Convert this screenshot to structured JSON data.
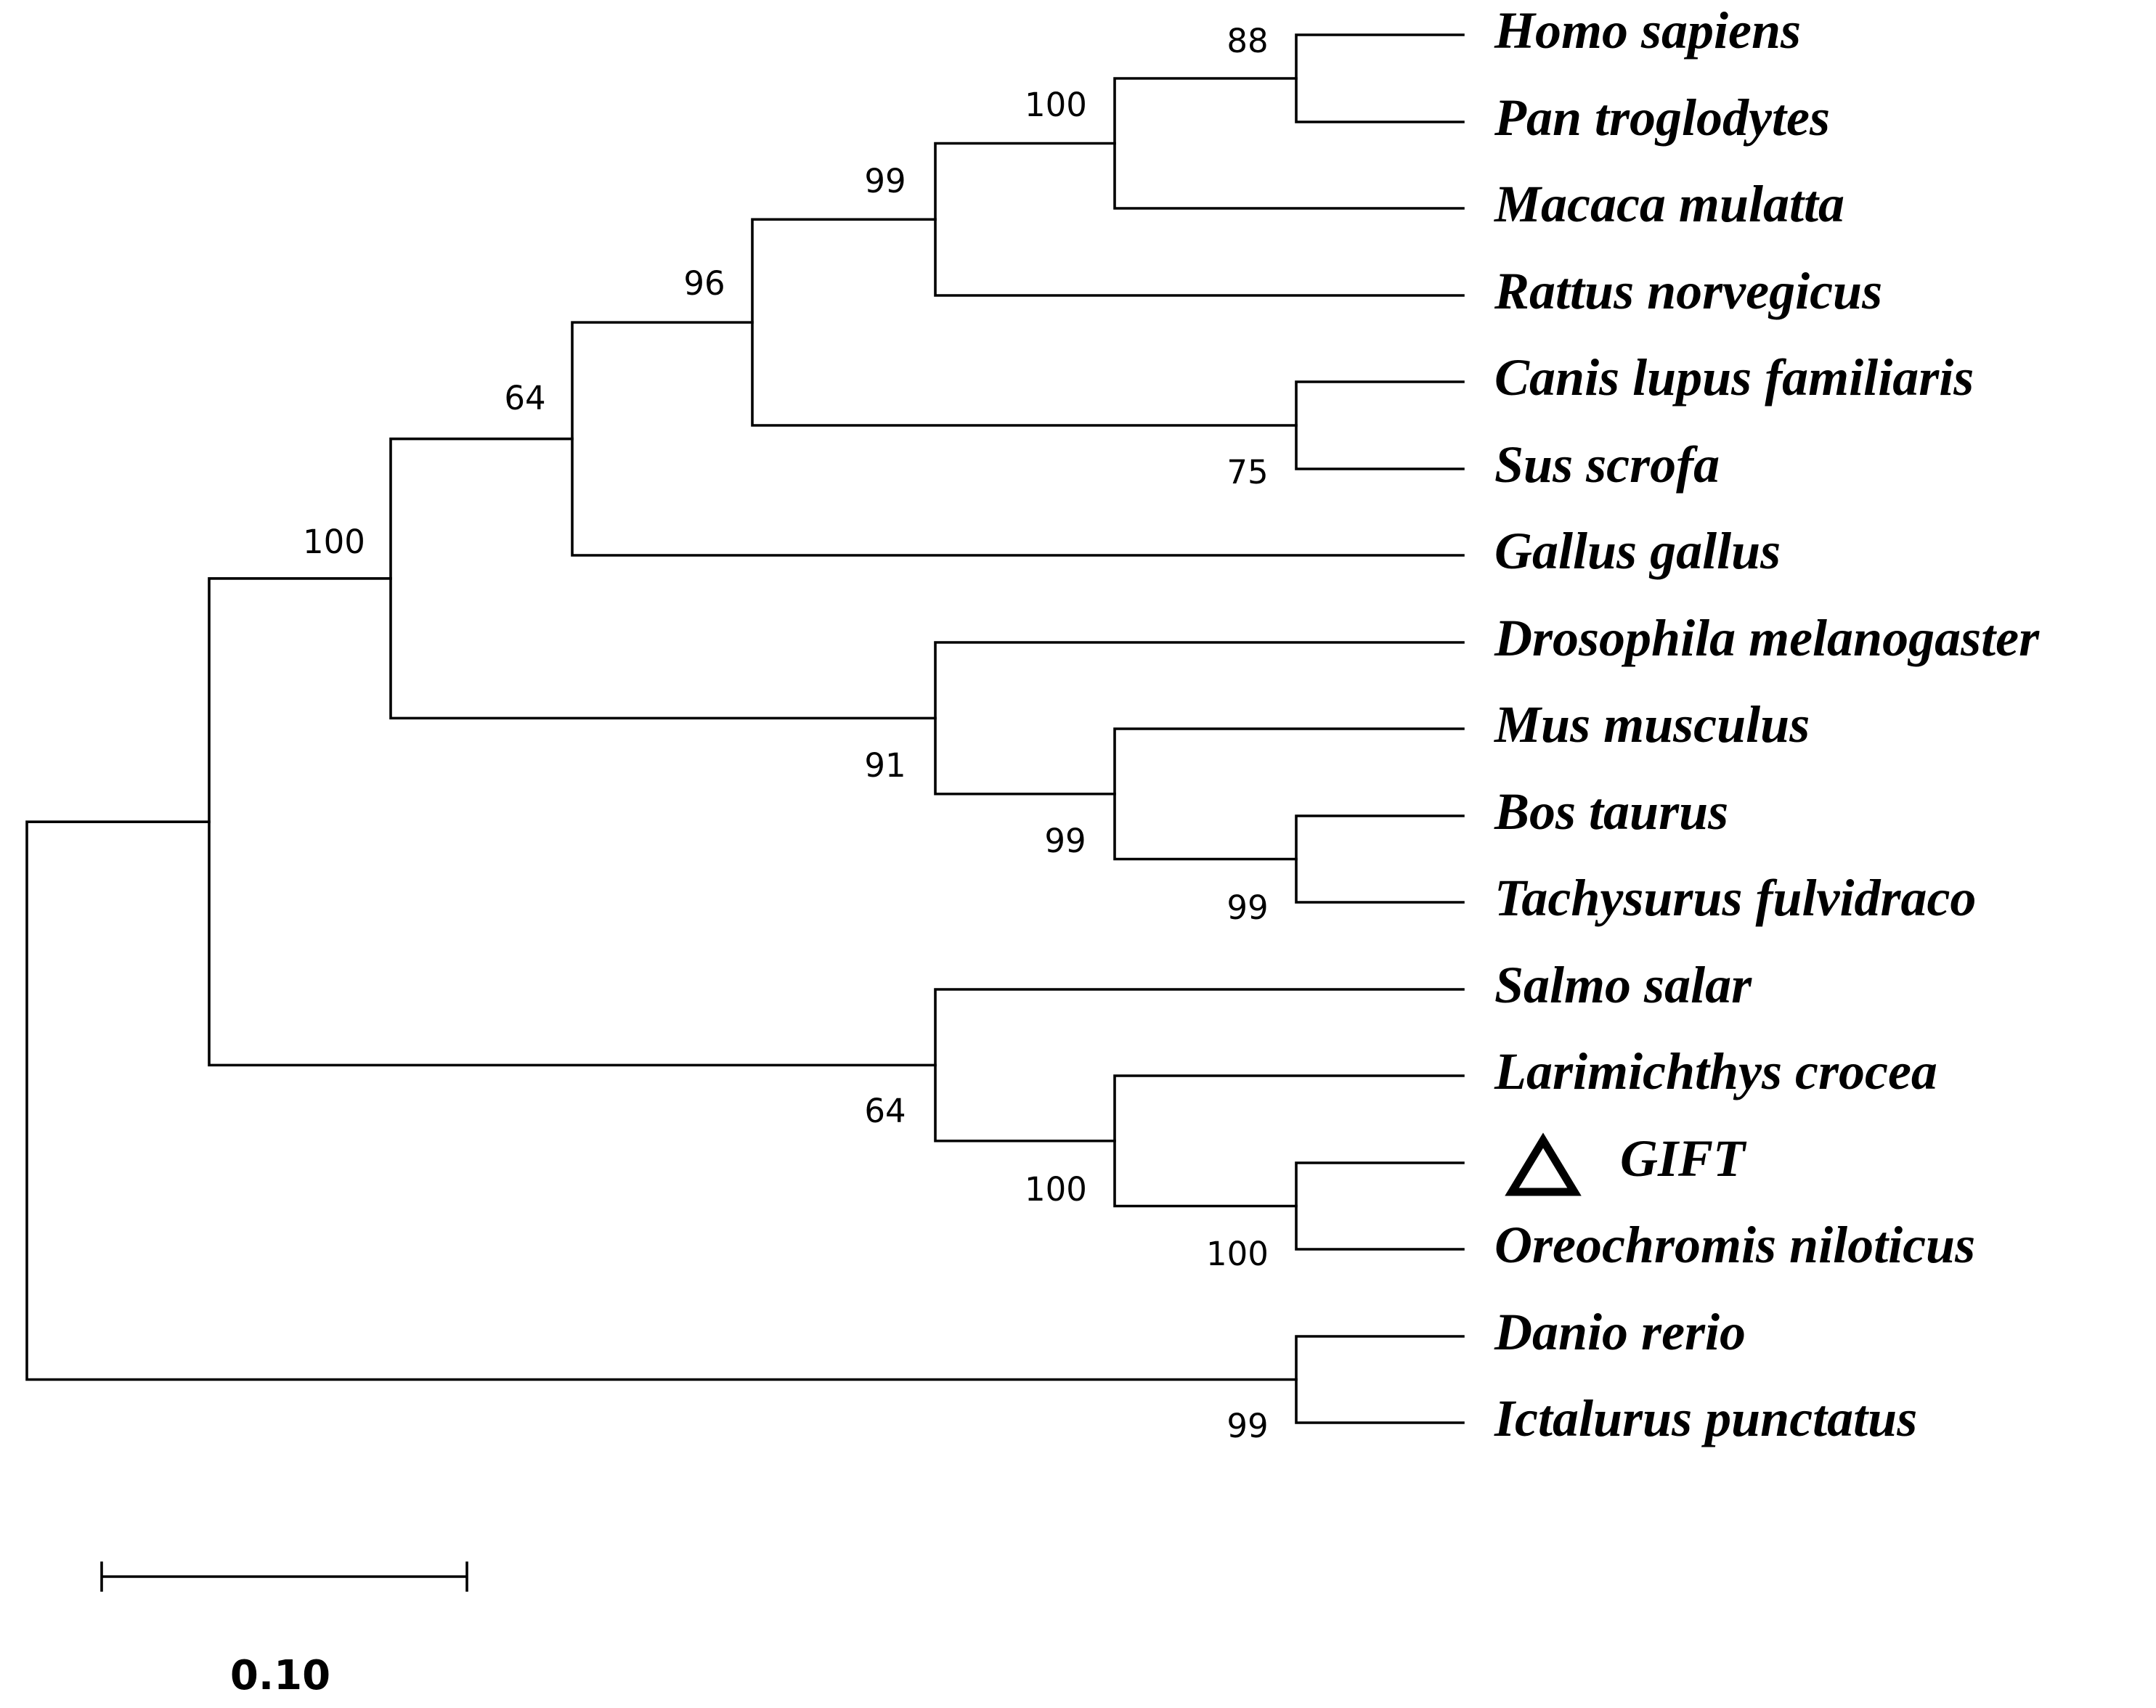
{
  "chart_data": {
    "type": "phylogenetic-tree",
    "style": "rectangular cladogram",
    "taxa": [
      "Homo sapiens",
      "Pan troglodytes",
      "Macaca mulatta",
      "Rattus norvegicus",
      "Canis lupus familiaris",
      "Sus scrofa",
      "Gallus gallus",
      "Drosophila melanogaster",
      "Mus musculus",
      "Bos taurus",
      "Tachysurus fulvidraco",
      "Salmo salar",
      "Larimichthys crocea",
      "GIFT",
      "Oreochromis niloticus",
      "Danio rerio",
      "Ictalurus punctatus"
    ],
    "highlighted_taxon": "GIFT",
    "highlight_marker": "open-triangle",
    "clades": [
      {
        "members": [
          "Homo sapiens",
          "Pan troglodytes"
        ],
        "support": "88"
      },
      {
        "members": [
          "Homo sapiens",
          "Pan troglodytes",
          "Macaca mulatta"
        ],
        "support": "100"
      },
      {
        "members": [
          "Homo sapiens",
          "Pan troglodytes",
          "Macaca mulatta",
          "Rattus norvegicus"
        ],
        "support": "99"
      },
      {
        "members": [
          "Canis lupus familiaris",
          "Sus scrofa"
        ],
        "support": "75"
      },
      {
        "members": [
          "Homo sapiens",
          "Pan troglodytes",
          "Macaca mulatta",
          "Rattus norvegicus",
          "Canis lupus familiaris",
          "Sus scrofa"
        ],
        "support": "96"
      },
      {
        "members": [
          "Homo sapiens",
          "Pan troglodytes",
          "Macaca mulatta",
          "Rattus norvegicus",
          "Canis lupus familiaris",
          "Sus scrofa",
          "Gallus gallus"
        ],
        "support": "64"
      },
      {
        "members": [
          "Bos taurus",
          "Tachysurus fulvidraco"
        ],
        "support": "99"
      },
      {
        "members": [
          "Mus musculus",
          "Bos taurus",
          "Tachysurus fulvidraco"
        ],
        "support": "99"
      },
      {
        "members": [
          "Drosophila melanogaster",
          "Mus musculus",
          "Bos taurus",
          "Tachysurus fulvidraco"
        ],
        "support": "91"
      },
      {
        "members": [
          "Homo sapiens",
          "Pan troglodytes",
          "Macaca mulatta",
          "Rattus norvegicus",
          "Canis lupus familiaris",
          "Sus scrofa",
          "Gallus gallus",
          "Drosophila melanogaster",
          "Mus musculus",
          "Bos taurus",
          "Tachysurus fulvidraco"
        ],
        "support": "100"
      },
      {
        "members": [
          "GIFT",
          "Oreochromis niloticus"
        ],
        "support": "100"
      },
      {
        "members": [
          "Larimichthys crocea",
          "GIFT",
          "Oreochromis niloticus"
        ],
        "support": "100"
      },
      {
        "members": [
          "Salmo salar",
          "Larimichthys crocea",
          "GIFT",
          "Oreochromis niloticus"
        ],
        "support": "64"
      },
      {
        "members": [
          "Danio rerio",
          "Ictalurus punctatus"
        ],
        "support": "99"
      }
    ],
    "scale_bar": {
      "value": 0.1,
      "label": "0.10"
    }
  }
}
